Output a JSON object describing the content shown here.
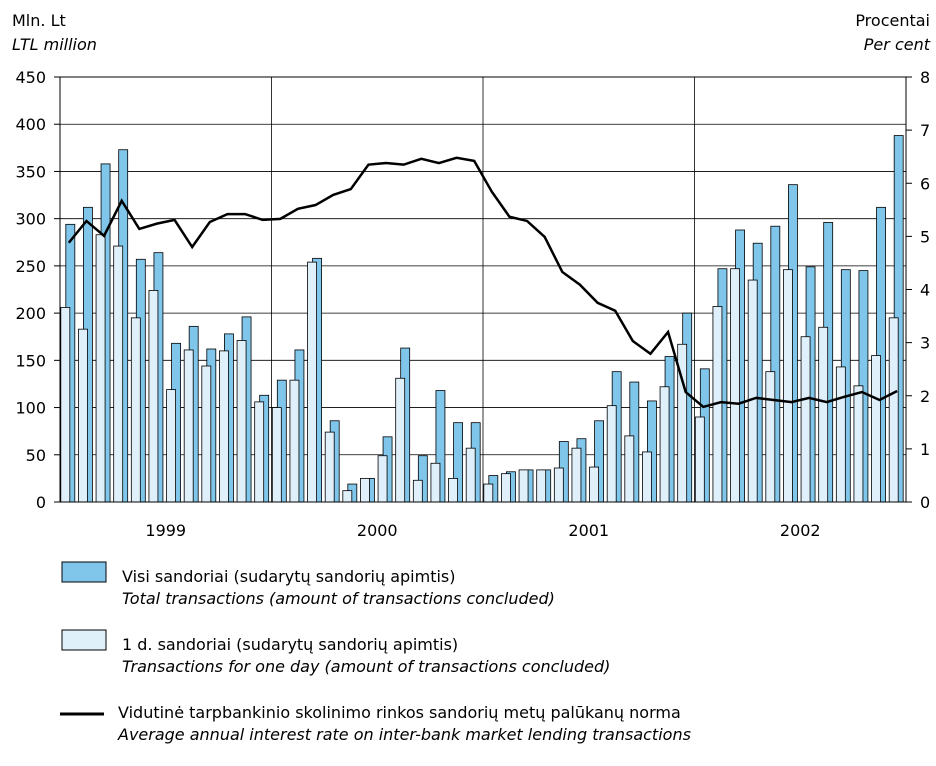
{
  "chart_data": {
    "type": "bar_line",
    "y_label": [
      "Mln. Lt",
      "LTL million"
    ],
    "y2_label": [
      "Procentai",
      "Per cent"
    ],
    "x_groups": [
      "1999",
      "2000",
      "2001",
      "2002"
    ],
    "categories": [
      null,
      null,
      null,
      null,
      null,
      null,
      null,
      null,
      null,
      null,
      null,
      null,
      null,
      null,
      null,
      null,
      null,
      null,
      null,
      null,
      null,
      null,
      null,
      null,
      null,
      null,
      null,
      null,
      null,
      null,
      null,
      null,
      null,
      null,
      null,
      null,
      null,
      null,
      null,
      null,
      null,
      null,
      null,
      null,
      null,
      null,
      null,
      null
    ],
    "series": [
      {
        "name": "Visi sandoriai (sudarytų sandorių apimtis)",
        "name_en": "Total transactions (amount of transactions concluded)",
        "color": "#7fc6ea",
        "kind": "bar",
        "values": [
          294,
          312,
          358,
          373,
          257,
          264,
          168,
          186,
          162,
          178,
          196,
          113,
          129,
          161,
          258,
          86,
          19,
          25,
          69,
          163,
          49,
          118,
          84,
          84,
          28,
          32,
          34,
          34,
          64,
          67,
          86,
          138,
          127,
          107,
          154,
          200,
          141,
          247,
          288,
          274,
          292,
          336,
          249,
          296,
          246,
          245,
          312,
          388
        ]
      },
      {
        "name": "1 d. sandoriai (sudarytų sandorių apimtis)",
        "name_en": "Transactions for one day (amount of transactions concluded)",
        "color": "#dff0fb",
        "kind": "bar",
        "values": [
          206,
          183,
          283,
          271,
          195,
          224,
          119,
          161,
          144,
          160,
          171,
          106,
          100,
          129,
          254,
          74,
          12,
          25,
          49,
          131,
          23,
          41,
          25,
          57,
          19,
          30,
          34,
          34,
          36,
          57,
          37,
          102,
          70,
          53,
          122,
          167,
          90,
          207,
          247,
          235,
          138,
          246,
          175,
          185,
          143,
          123,
          155,
          195
        ]
      },
      {
        "name": "Vidutinė tarpbankinio skolinimo rinkos sandorių metų palūkanų norma",
        "name_en": "Average annual interest rate on inter-bank market lending transactions",
        "color": "#000000",
        "kind": "line",
        "axis": "y2",
        "values": [
          4.88,
          5.29,
          5.01,
          5.67,
          5.14,
          5.24,
          5.31,
          4.8,
          5.27,
          5.42,
          5.42,
          5.31,
          5.33,
          5.52,
          5.59,
          5.78,
          5.89,
          6.35,
          6.38,
          6.35,
          6.46,
          6.38,
          6.48,
          6.42,
          5.84,
          5.37,
          5.29,
          4.99,
          4.33,
          4.09,
          3.75,
          3.6,
          3.03,
          2.79,
          3.2,
          2.07,
          1.79,
          1.88,
          1.85,
          1.96,
          1.92,
          1.88,
          1.96,
          1.88,
          1.98,
          2.07,
          1.92,
          2.09
        ]
      }
    ],
    "ylim": [
      0,
      450
    ],
    "yticks": [
      0,
      50,
      100,
      150,
      200,
      250,
      300,
      350,
      400,
      450
    ],
    "y2lim": [
      0,
      8
    ],
    "y2ticks": [
      0,
      1,
      2,
      3,
      4,
      5,
      6,
      7,
      8
    ],
    "grid": true
  }
}
